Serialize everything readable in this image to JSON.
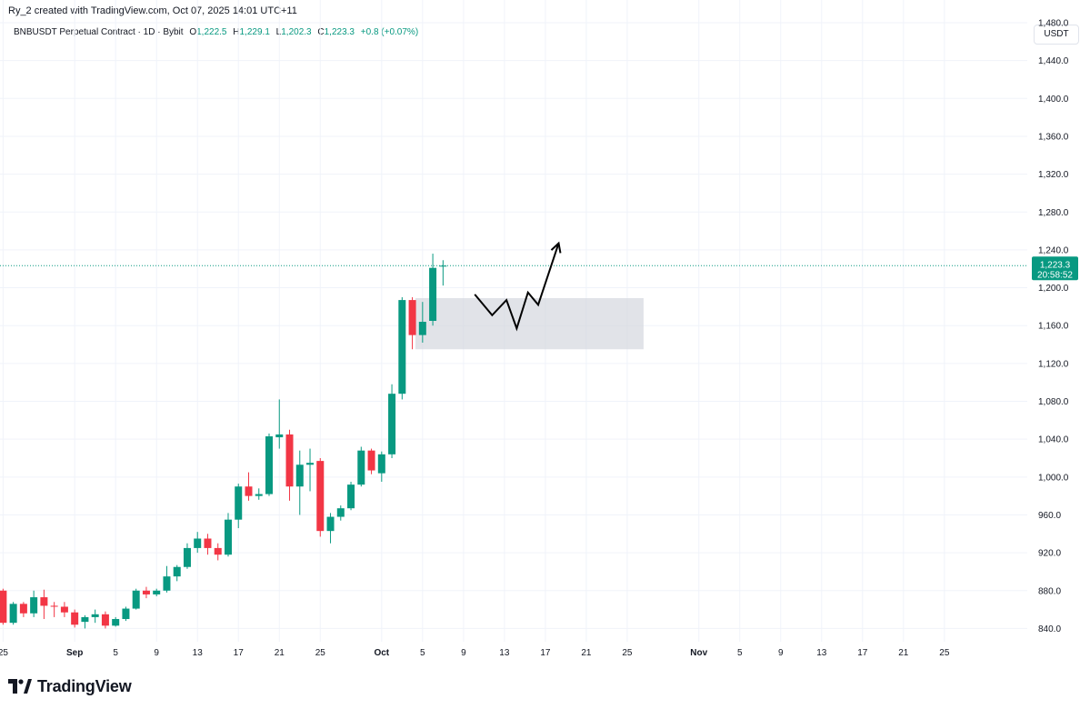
{
  "caption": "Ry_2 created with TradingView.com, Oct 07, 2025 14:01 UTC+11",
  "legend": {
    "symbol": "BNBUSDT Perpetual Contract · 1D · Bybit",
    "o_key": "O",
    "o_val": "1,222.5",
    "h_key": "H",
    "h_val": "1,229.1",
    "l_key": "L",
    "l_val": "1,202.3",
    "c_key": "C",
    "c_val": "1,223.3",
    "change": "+0.8 (+0.07%)"
  },
  "unit": "USDT",
  "brand": "TradingView",
  "last_price": {
    "price_label": "1,223.3",
    "countdown": "20:58:52"
  },
  "colors": {
    "up": "#089981",
    "down": "#f23645",
    "grid": "#f0f3fa",
    "axis_text": "#131722",
    "zone": "#d1d4dc",
    "arrow": "#000000"
  },
  "chart_data": {
    "type": "candlestick",
    "title": "BNBUSDT Perpetual Contract · 1D · Bybit",
    "ylim": [
      826,
      1504
    ],
    "y_ticks": [
      840,
      880,
      920,
      960,
      1000,
      1040,
      1080,
      1120,
      1160,
      1200,
      1240,
      1280,
      1320,
      1360,
      1400,
      1440,
      1480
    ],
    "y_tick_labels": [
      "840.0",
      "880.0",
      "920.0",
      "960.0",
      "1,000.0",
      "1,040.0",
      "1,080.0",
      "1,120.0",
      "1,160.0",
      "1,200.0",
      "1,240.0",
      "1,280.0",
      "1,320.0",
      "1,360.0",
      "1,400.0",
      "1,440.0",
      "1,480.0"
    ],
    "x_ticks": [
      {
        "day": 0,
        "label": "25"
      },
      {
        "day": 7,
        "label": "Sep"
      },
      {
        "day": 11,
        "label": "5"
      },
      {
        "day": 15,
        "label": "9"
      },
      {
        "day": 19,
        "label": "13"
      },
      {
        "day": 23,
        "label": "17"
      },
      {
        "day": 27,
        "label": "21"
      },
      {
        "day": 31,
        "label": "25"
      },
      {
        "day": 37,
        "label": "Oct"
      },
      {
        "day": 41,
        "label": "5"
      },
      {
        "day": 45,
        "label": "9"
      },
      {
        "day": 49,
        "label": "13"
      },
      {
        "day": 53,
        "label": "17"
      },
      {
        "day": 57,
        "label": "21"
      },
      {
        "day": 61,
        "label": "25"
      },
      {
        "day": 68,
        "label": "Nov"
      },
      {
        "day": 72,
        "label": "5"
      },
      {
        "day": 76,
        "label": "9"
      },
      {
        "day": 80,
        "label": "13"
      },
      {
        "day": 84,
        "label": "17"
      },
      {
        "day": 88,
        "label": "21"
      },
      {
        "day": 92,
        "label": "25"
      }
    ],
    "x_range_days": [
      -0.3,
      100.1
    ],
    "candles": [
      {
        "day": 0,
        "date": "Aug 25",
        "o": 880,
        "h": 882,
        "c": 846,
        "l": 844
      },
      {
        "day": 1,
        "date": "Aug 26",
        "o": 846,
        "h": 868,
        "c": 866,
        "l": 844
      },
      {
        "day": 2,
        "date": "Aug 27",
        "o": 866,
        "h": 868,
        "c": 856,
        "l": 852
      },
      {
        "day": 3,
        "date": "Aug 28",
        "o": 856,
        "h": 880,
        "c": 873,
        "l": 852
      },
      {
        "day": 4,
        "date": "Aug 29",
        "o": 873,
        "h": 881,
        "c": 864,
        "l": 850
      },
      {
        "day": 5,
        "date": "Aug 30",
        "o": 864,
        "h": 868,
        "c": 863,
        "l": 852
      },
      {
        "day": 6,
        "date": "Aug 31",
        "o": 863,
        "h": 868,
        "c": 857,
        "l": 852
      },
      {
        "day": 7,
        "date": "Sep 1",
        "o": 857,
        "h": 860,
        "c": 844,
        "l": 841
      },
      {
        "day": 8,
        "date": "Sep 2",
        "o": 847,
        "h": 854,
        "c": 852,
        "l": 840
      },
      {
        "day": 9,
        "date": "Sep 3",
        "o": 852,
        "h": 860,
        "c": 855,
        "l": 846
      },
      {
        "day": 10,
        "date": "Sep 4",
        "o": 855,
        "h": 858,
        "c": 843,
        "l": 840
      },
      {
        "day": 11,
        "date": "Sep 5",
        "o": 843,
        "h": 852,
        "c": 850,
        "l": 842
      },
      {
        "day": 12,
        "date": "Sep 6",
        "o": 850,
        "h": 863,
        "c": 861,
        "l": 848
      },
      {
        "day": 13,
        "date": "Sep 7",
        "o": 861,
        "h": 882,
        "c": 880,
        "l": 860
      },
      {
        "day": 14,
        "date": "Sep 8",
        "o": 880,
        "h": 884,
        "c": 876,
        "l": 872
      },
      {
        "day": 15,
        "date": "Sep 9",
        "o": 876,
        "h": 882,
        "c": 880,
        "l": 874
      },
      {
        "day": 16,
        "date": "Sep 10",
        "o": 880,
        "h": 906,
        "c": 895,
        "l": 878
      },
      {
        "day": 17,
        "date": "Sep 11",
        "o": 895,
        "h": 907,
        "c": 905,
        "l": 890
      },
      {
        "day": 18,
        "date": "Sep 12",
        "o": 905,
        "h": 930,
        "c": 925,
        "l": 903
      },
      {
        "day": 19,
        "date": "Sep 13",
        "o": 925,
        "h": 942,
        "c": 935,
        "l": 920
      },
      {
        "day": 20,
        "date": "Sep 14",
        "o": 935,
        "h": 940,
        "c": 925,
        "l": 918
      },
      {
        "day": 21,
        "date": "Sep 15",
        "o": 925,
        "h": 930,
        "c": 918,
        "l": 912
      },
      {
        "day": 22,
        "date": "Sep 16",
        "o": 918,
        "h": 962,
        "c": 955,
        "l": 916
      },
      {
        "day": 23,
        "date": "Sep 17",
        "o": 955,
        "h": 993,
        "c": 990,
        "l": 946
      },
      {
        "day": 24,
        "date": "Sep 18",
        "o": 990,
        "h": 1005,
        "c": 980,
        "l": 975
      },
      {
        "day": 25,
        "date": "Sep 19",
        "o": 980,
        "h": 988,
        "c": 982,
        "l": 976
      },
      {
        "day": 26,
        "date": "Sep 20",
        "o": 982,
        "h": 1046,
        "c": 1043,
        "l": 980
      },
      {
        "day": 27,
        "date": "Sep 21",
        "o": 1042,
        "h": 1082,
        "c": 1045,
        "l": 1030
      },
      {
        "day": 28,
        "date": "Sep 22",
        "o": 1045,
        "h": 1050,
        "c": 990,
        "l": 975
      },
      {
        "day": 29,
        "date": "Sep 23",
        "o": 990,
        "h": 1028,
        "c": 1013,
        "l": 960
      },
      {
        "day": 30,
        "date": "Sep 24",
        "o": 1013,
        "h": 1030,
        "c": 1015,
        "l": 985
      },
      {
        "day": 31,
        "date": "Sep 25",
        "o": 1017,
        "h": 1020,
        "c": 943,
        "l": 937
      },
      {
        "day": 32,
        "date": "Sep 26",
        "o": 943,
        "h": 962,
        "c": 958,
        "l": 930
      },
      {
        "day": 33,
        "date": "Sep 27",
        "o": 958,
        "h": 970,
        "c": 967,
        "l": 954
      },
      {
        "day": 34,
        "date": "Sep 28",
        "o": 967,
        "h": 995,
        "c": 992,
        "l": 965
      },
      {
        "day": 35,
        "date": "Sep 29",
        "o": 992,
        "h": 1032,
        "c": 1028,
        "l": 990
      },
      {
        "day": 36,
        "date": "Sep 30",
        "o": 1028,
        "h": 1030,
        "c": 1007,
        "l": 1003
      },
      {
        "day": 37,
        "date": "Oct 1",
        "o": 1004,
        "h": 1027,
        "c": 1024,
        "l": 995
      },
      {
        "day": 38,
        "date": "Oct 2",
        "o": 1024,
        "h": 1098,
        "c": 1088,
        "l": 1020
      },
      {
        "day": 39,
        "date": "Oct 3",
        "o": 1088,
        "h": 1190,
        "c": 1187,
        "l": 1082
      },
      {
        "day": 40,
        "date": "Oct 4",
        "o": 1187,
        "h": 1190,
        "c": 1150,
        "l": 1135
      },
      {
        "day": 41,
        "date": "Oct 5",
        "o": 1150,
        "h": 1185,
        "c": 1164,
        "l": 1142
      },
      {
        "day": 42,
        "date": "Oct 6",
        "o": 1165,
        "h": 1236,
        "c": 1221,
        "l": 1160
      },
      {
        "day": 43,
        "date": "Oct 7",
        "o": 1222.5,
        "h": 1229.1,
        "c": 1223.3,
        "l": 1202.3
      }
    ],
    "zone": {
      "day_start": 40.3,
      "day_end": 62.6,
      "price_top": 1189,
      "price_bottom": 1135
    },
    "arrow_path": [
      {
        "day": 46.1,
        "price": 1193
      },
      {
        "day": 47.8,
        "price": 1171
      },
      {
        "day": 49.2,
        "price": 1187
      },
      {
        "day": 50.2,
        "price": 1157
      },
      {
        "day": 51.3,
        "price": 1195
      },
      {
        "day": 52.3,
        "price": 1182
      },
      {
        "day": 54.3,
        "price": 1247
      }
    ],
    "last_price_value": 1223.3
  }
}
